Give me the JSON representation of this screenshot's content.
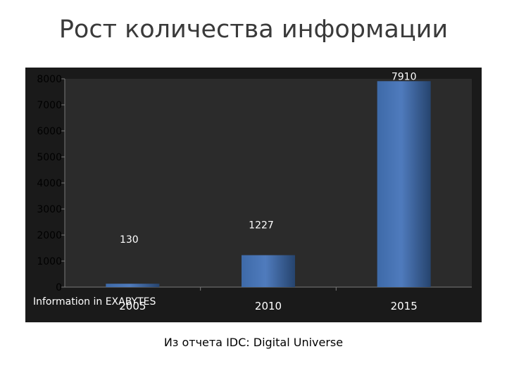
{
  "title": "Рост количества информации",
  "source": "Из отчета IDC: Digital Universe",
  "colors": {
    "frame": "#1a1a1a",
    "plot": "#2b2b2b",
    "bar_light": "#4f7bbd",
    "bar_dark": "#26446e",
    "text_light": "#ffffff",
    "text_dark": "#000000"
  },
  "chart_data": {
    "type": "bar",
    "categories": [
      "2005",
      "2010",
      "2015"
    ],
    "values": [
      130,
      1227,
      7910
    ],
    "data_labels": [
      "130",
      "1227",
      "7910"
    ],
    "y_ticks": [
      "0",
      "1000",
      "2000",
      "3000",
      "4000",
      "5000",
      "6000",
      "7000",
      "8000"
    ],
    "ylim": [
      0,
      8000
    ],
    "unit_label": "Information in EXABYTES",
    "grid": false,
    "legend": "none"
  }
}
